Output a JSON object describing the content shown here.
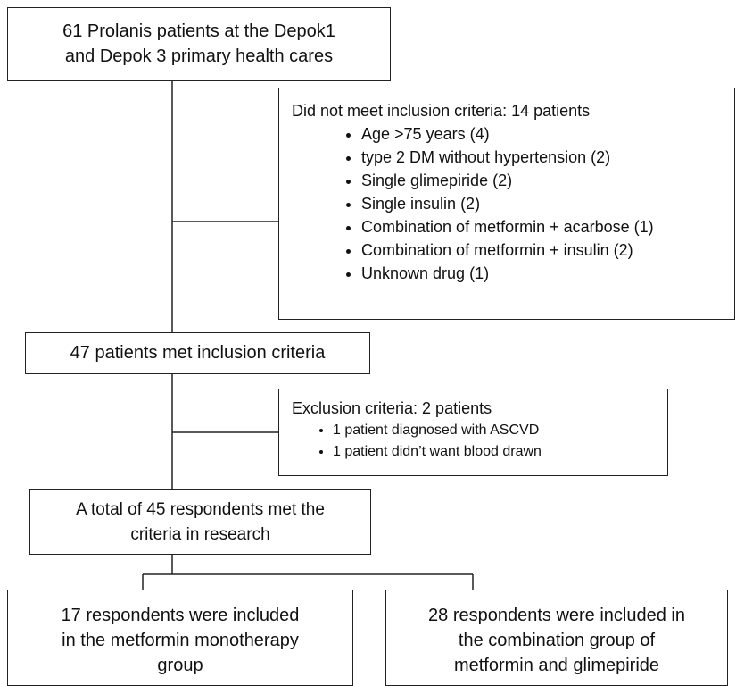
{
  "start": {
    "lines": [
      "61 Prolanis patients at the Depok1",
      "and Depok 3 primary health cares"
    ]
  },
  "not_met": {
    "title": "Did not meet inclusion criteria: 14 patients",
    "items": [
      "Age >75 years (4)",
      "type 2 DM without hypertension (2)",
      "Single glimepiride (2)",
      "Single insulin (2)",
      "Combination of metformin + acarbose (1)",
      "Combination of metformin + insulin (2)",
      "Unknown drug (1)"
    ]
  },
  "met": {
    "lines": [
      "47 patients met inclusion criteria"
    ]
  },
  "exclusion": {
    "title": "Exclusion criteria: 2 patients",
    "items": [
      "1 patient diagnosed with ASCVD",
      "1 patient didn’t want blood drawn"
    ]
  },
  "total": {
    "lines": [
      "A total of 45 respondents met the",
      "criteria in research"
    ]
  },
  "group_mono": {
    "lines": [
      "17 respondents were included",
      "in the metformin monotherapy",
      "group"
    ]
  },
  "group_combo": {
    "lines": [
      "28 respondents were included in",
      "the combination group of",
      "metformin and glimepiride"
    ]
  }
}
